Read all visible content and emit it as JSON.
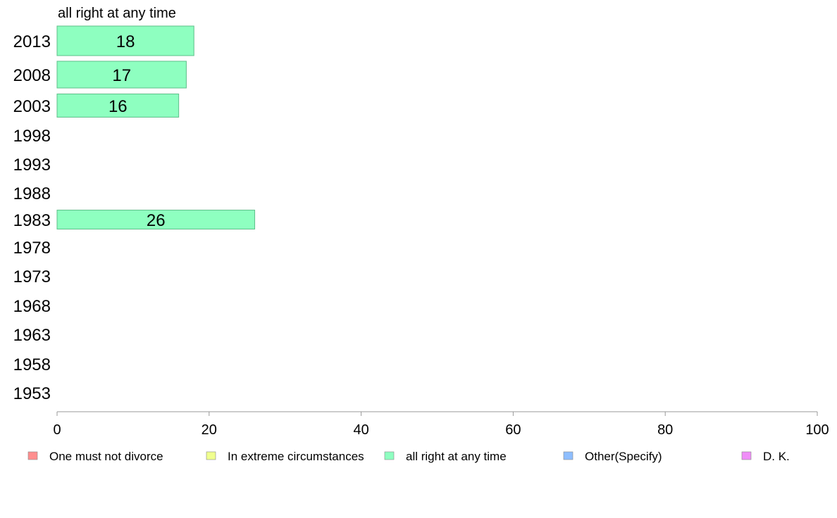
{
  "chart_data": {
    "type": "bar",
    "orientation": "horizontal",
    "title": "all right at any time",
    "categories": [
      "2013",
      "2008",
      "2003",
      "1998",
      "1993",
      "1988",
      "1983",
      "1978",
      "1973",
      "1968",
      "1963",
      "1958",
      "1953"
    ],
    "series": [
      {
        "name": "all right at any time",
        "color": "#8effc0",
        "values": [
          18,
          17,
          16,
          null,
          null,
          null,
          26,
          null,
          null,
          null,
          null,
          null,
          null
        ],
        "labels": [
          "18",
          "17",
          "16",
          "",
          "",
          "",
          "26",
          "",
          "",
          "",
          "",
          "",
          ""
        ]
      }
    ],
    "xlim": [
      0,
      100
    ],
    "xticks": [
      0,
      20,
      40,
      60,
      80,
      100
    ],
    "grid": false,
    "legend_position": "bottom",
    "legend": [
      {
        "label": "One must not divorce",
        "color": "#ff8e8e"
      },
      {
        "label": "In extreme circumstances",
        "color": "#f0ff8e"
      },
      {
        "label": "all right at any time",
        "color": "#8effc0"
      },
      {
        "label": "Other(Specify)",
        "color": "#8ebeff"
      },
      {
        "label": "D. K.",
        "color": "#f08ef8"
      }
    ]
  }
}
